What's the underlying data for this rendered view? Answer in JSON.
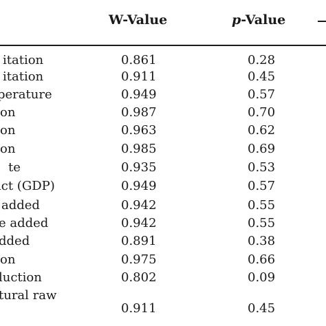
{
  "header": {
    "w_value": "W-Value",
    "p_prefix": "p",
    "p_suffix": "-Value"
  },
  "rows": [
    {
      "label": "itation",
      "w": "0.861",
      "p": "0.28"
    },
    {
      "label": "itation",
      "w": "0.911",
      "p": "0.45"
    },
    {
      "label": "perature",
      "w": "0.949",
      "p": "0.57"
    },
    {
      "label": "on",
      "w": "0.987",
      "p": "0.70"
    },
    {
      "label": "on",
      "w": "0.963",
      "p": "0.62"
    },
    {
      "label": "on",
      "w": "0.985",
      "p": "0.69"
    },
    {
      "label": "te",
      "w": "0.935",
      "p": "0.53"
    },
    {
      "label": "ict (GDP)",
      "w": "0.949",
      "p": "0.57"
    },
    {
      "label": "added",
      "w": "0.942",
      "p": "0.55"
    },
    {
      "label": "e added",
      "w": "0.942",
      "p": "0.55"
    },
    {
      "label": "dded",
      "w": "0.891",
      "p": "0.38"
    },
    {
      "label": "on",
      "w": "0.975",
      "p": "0.66"
    },
    {
      "label": "luction",
      "w": "0.802",
      "p": "0.09"
    },
    {
      "label": "",
      "label_top": "tural raw",
      "w": "0.911",
      "p": "0.45"
    }
  ]
}
